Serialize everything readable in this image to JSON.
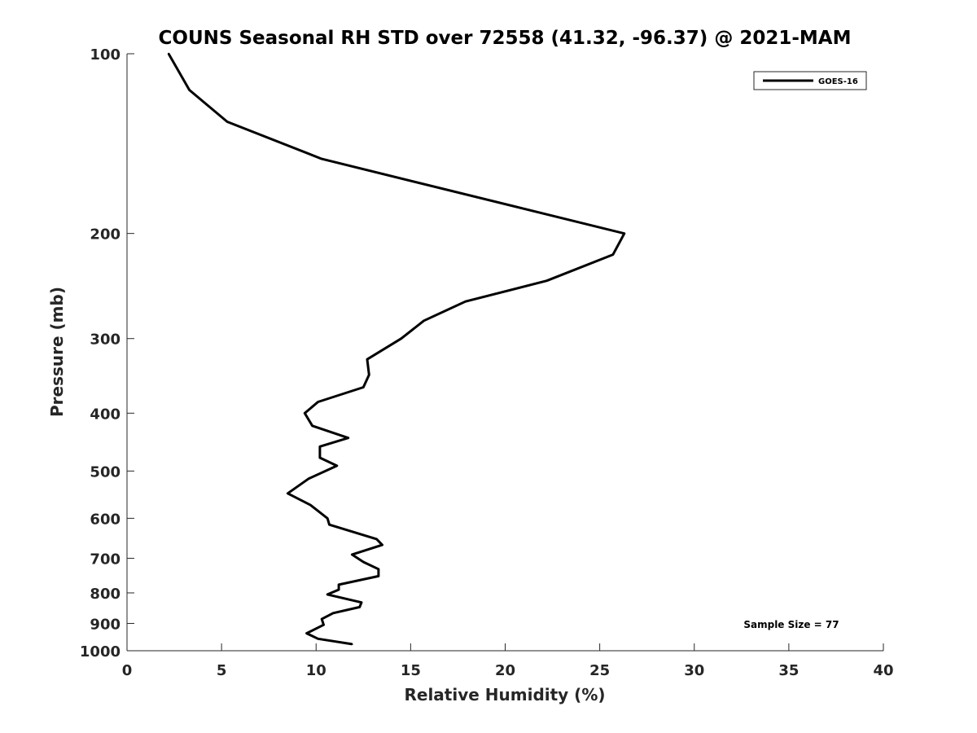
{
  "chart_data": {
    "type": "line",
    "title": "COUNS Seasonal RH STD over 72558 (41.32, -96.37) @ 2021-MAM",
    "xlabel": "Relative Humidity (%)",
    "ylabel": "Pressure (mb)",
    "xlim": [
      0,
      40
    ],
    "ylim": [
      100,
      1000
    ],
    "y_scale": "log",
    "y_reversed": true,
    "x_ticks": [
      0,
      5,
      10,
      15,
      20,
      25,
      30,
      35,
      40
    ],
    "y_ticks": [
      100,
      200,
      300,
      400,
      500,
      600,
      700,
      800,
      900,
      1000
    ],
    "grid": false,
    "legend_position": "top-right",
    "annotation": "Sample Size = 77",
    "series": [
      {
        "name": "GOES-16",
        "color": "#000000",
        "x": [
          2.2,
          3.3,
          5.3,
          10.3,
          26.3,
          25.7,
          22.2,
          17.9,
          15.7,
          14.5,
          12.7,
          12.8,
          12.5,
          10.1,
          9.4,
          9.8,
          11.7,
          10.2,
          10.2,
          11.1,
          9.6,
          8.5,
          9.7,
          10.6,
          10.7,
          13.2,
          13.5,
          11.9,
          12.5,
          13.3,
          13.3,
          11.2,
          11.2,
          10.6,
          12.4,
          12.3,
          10.9,
          10.3,
          10.4,
          9.5,
          10.1,
          11.9
        ],
        "y": [
          100,
          115,
          130,
          150,
          200,
          217,
          240,
          260,
          280,
          300,
          325,
          345,
          362,
          383,
          400,
          420,
          440,
          455,
          475,
          490,
          515,
          545,
          570,
          600,
          615,
          650,
          665,
          690,
          710,
          730,
          750,
          775,
          790,
          805,
          830,
          845,
          865,
          885,
          905,
          935,
          955,
          975
        ]
      }
    ]
  }
}
